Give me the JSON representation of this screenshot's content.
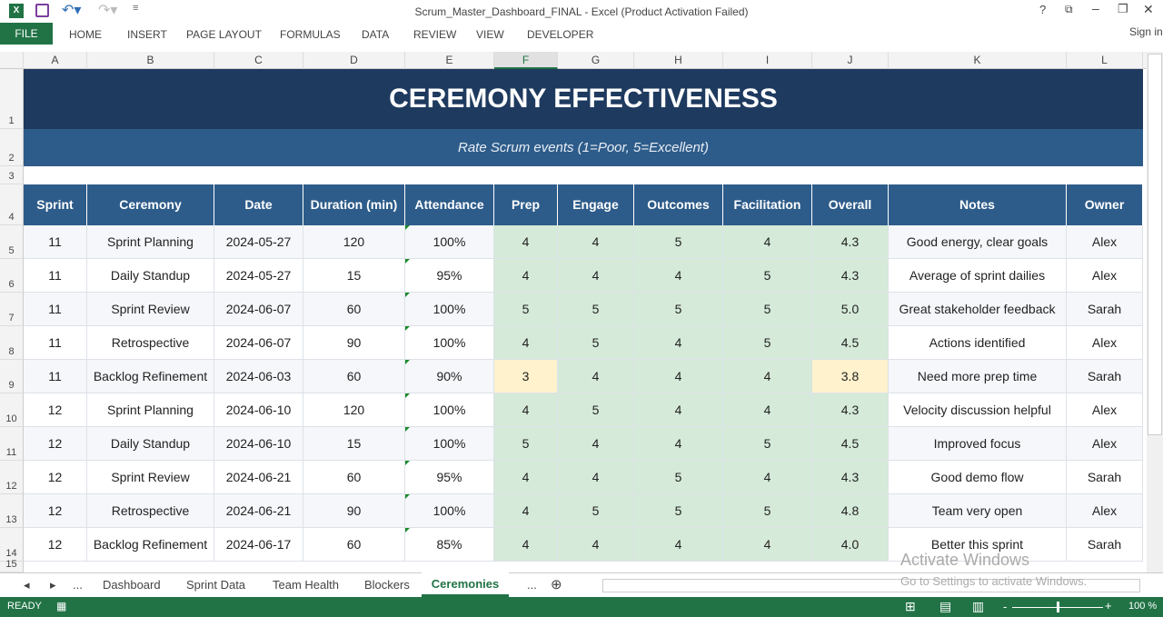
{
  "window": {
    "title": "Scrum_Master_Dashboard_FINAL - Excel (Product Activation Failed)",
    "sign_in": "Sign in"
  },
  "ribbon": {
    "file": "FILE",
    "tabs": [
      "HOME",
      "INSERT",
      "PAGE LAYOUT",
      "FORMULAS",
      "DATA",
      "REVIEW",
      "VIEW",
      "DEVELOPER"
    ]
  },
  "columns": [
    "A",
    "B",
    "C",
    "D",
    "E",
    "F",
    "G",
    "H",
    "I",
    "J",
    "K",
    "L"
  ],
  "rows": [
    "1",
    "2",
    "3",
    "4",
    "5",
    "6",
    "7",
    "8",
    "9",
    "10",
    "11",
    "12",
    "13",
    "14",
    "15"
  ],
  "sheet": {
    "title": "CEREMONY EFFECTIVENESS",
    "subtitle": "Rate Scrum events (1=Poor, 5=Excellent)",
    "headers": [
      "Sprint",
      "Ceremony",
      "Date",
      "Duration (min)",
      "Attendance",
      "Prep",
      "Engage",
      "Outcomes",
      "Facilitation",
      "Overall",
      "Notes",
      "Owner"
    ],
    "data": [
      [
        "11",
        "Sprint Planning",
        "2024-05-27",
        "120",
        "100%",
        "4",
        "4",
        "5",
        "4",
        "4.3",
        "Good energy, clear goals",
        "Alex"
      ],
      [
        "11",
        "Daily Standup",
        "2024-05-27",
        "15",
        "95%",
        "4",
        "4",
        "4",
        "5",
        "4.3",
        "Average of sprint dailies",
        "Alex"
      ],
      [
        "11",
        "Sprint Review",
        "2024-06-07",
        "60",
        "100%",
        "5",
        "5",
        "5",
        "5",
        "5.0",
        "Great stakeholder feedback",
        "Sarah"
      ],
      [
        "11",
        "Retrospective",
        "2024-06-07",
        "90",
        "100%",
        "4",
        "5",
        "4",
        "5",
        "4.5",
        "Actions identified",
        "Alex"
      ],
      [
        "11",
        "Backlog Refinement",
        "2024-06-03",
        "60",
        "90%",
        "3",
        "4",
        "4",
        "4",
        "3.8",
        "Need more prep time",
        "Sarah"
      ],
      [
        "12",
        "Sprint Planning",
        "2024-06-10",
        "120",
        "100%",
        "4",
        "5",
        "4",
        "4",
        "4.3",
        "Velocity discussion helpful",
        "Alex"
      ],
      [
        "12",
        "Daily Standup",
        "2024-06-10",
        "15",
        "100%",
        "5",
        "4",
        "4",
        "5",
        "4.5",
        "Improved focus",
        "Alex"
      ],
      [
        "12",
        "Sprint Review",
        "2024-06-21",
        "60",
        "95%",
        "4",
        "4",
        "5",
        "4",
        "4.3",
        "Good demo flow",
        "Sarah"
      ],
      [
        "12",
        "Retrospective",
        "2024-06-21",
        "90",
        "100%",
        "4",
        "5",
        "5",
        "5",
        "4.8",
        "Team very open",
        "Alex"
      ],
      [
        "12",
        "Backlog Refinement",
        "2024-06-17",
        "60",
        "85%",
        "4",
        "4",
        "4",
        "4",
        "4.0",
        "Better this sprint",
        "Sarah"
      ]
    ]
  },
  "sheet_tabs": [
    "Dashboard",
    "Sprint Data",
    "Team Health",
    "Blockers",
    "Ceremonies"
  ],
  "active_tab": "Ceremonies",
  "status": {
    "ready": "READY",
    "zoom": "100 %"
  },
  "watermark": {
    "line1": "Activate Windows",
    "line2": "Go to Settings to activate Windows."
  },
  "colors": {
    "header": "#1e3a5f",
    "subheader": "#2e5c8a",
    "score_fill": "#d5ead9",
    "warn_fill": "#fff2cc",
    "excel_green": "#217346"
  }
}
